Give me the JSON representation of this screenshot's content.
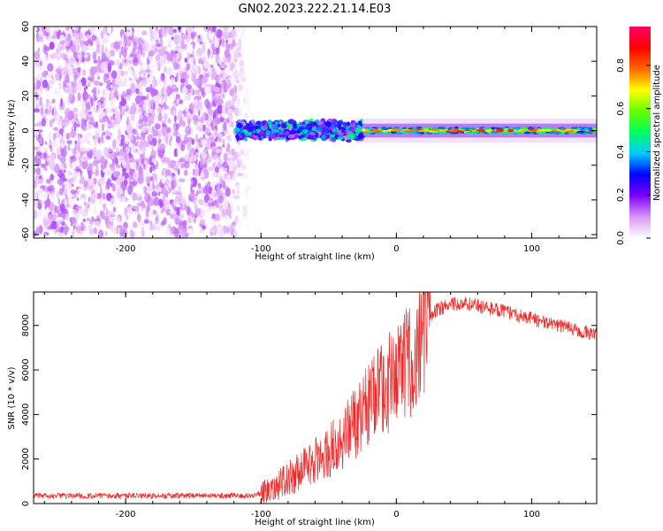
{
  "title": "GN02.2023.222.21.14.E03",
  "chart_data": [
    {
      "type": "heatmap",
      "xlabel": "Height of straight line (km)",
      "ylabel": "Frequency (Hz)",
      "xlim": [
        -268,
        148
      ],
      "ylim": [
        -62,
        60
      ],
      "xticks": [
        -200,
        -100,
        0,
        100
      ],
      "yticks": [
        60,
        40,
        20,
        0,
        -20,
        -40,
        -60
      ],
      "colorbar": {
        "label": "Normalized spectral amplitude",
        "range": [
          0,
          0.98
        ],
        "ticks": [
          0.0,
          0.2,
          0.4,
          0.6,
          0.8
        ],
        "colormap": [
          "#ffffff",
          "#d896f5",
          "#7f00ff",
          "#0000ff",
          "#00ccff",
          "#00ff60",
          "#66ff00",
          "#ffff00",
          "#ff6600",
          "#ff0000",
          "#ff0066"
        ]
      },
      "regions": [
        {
          "x_range": [
            -268,
            -108
          ],
          "y_range": [
            -60,
            60
          ],
          "amplitude": [
            0.0,
            0.15
          ]
        },
        {
          "x_range": [
            -118,
            -25
          ],
          "y_center": 0,
          "y_halfwidth": 6,
          "amplitude": [
            0.1,
            0.5
          ]
        },
        {
          "x_range": [
            -25,
            148
          ],
          "y_center": 0,
          "y_halfwidth": 3,
          "amplitude": [
            0.3,
            0.9
          ]
        }
      ]
    },
    {
      "type": "line",
      "xlabel": "Height of straight line (km)",
      "ylabel": "SNR (10 * v/v)",
      "xlim": [
        -268,
        148
      ],
      "ylim": [
        0,
        9500
      ],
      "xticks": [
        -200,
        -100,
        0,
        100
      ],
      "yticks": [
        0,
        2000,
        4000,
        6000,
        8000
      ],
      "color": "#ee2a2a",
      "envelope": {
        "x": [
          -268,
          -200,
          -150,
          -110,
          -100,
          -90,
          -80,
          -70,
          -60,
          -50,
          -40,
          -30,
          -20,
          -10,
          0,
          10,
          20,
          30,
          40,
          50,
          60,
          70,
          80,
          90,
          100,
          110,
          120,
          130,
          140,
          148
        ],
        "y": [
          350,
          350,
          350,
          350,
          450,
          700,
          1100,
          1500,
          1900,
          2300,
          2900,
          3600,
          4500,
          5200,
          5700,
          6400,
          8000,
          8700,
          8950,
          9000,
          8900,
          8750,
          8600,
          8450,
          8300,
          8150,
          8000,
          7850,
          7700,
          7600
        ]
      }
    }
  ]
}
